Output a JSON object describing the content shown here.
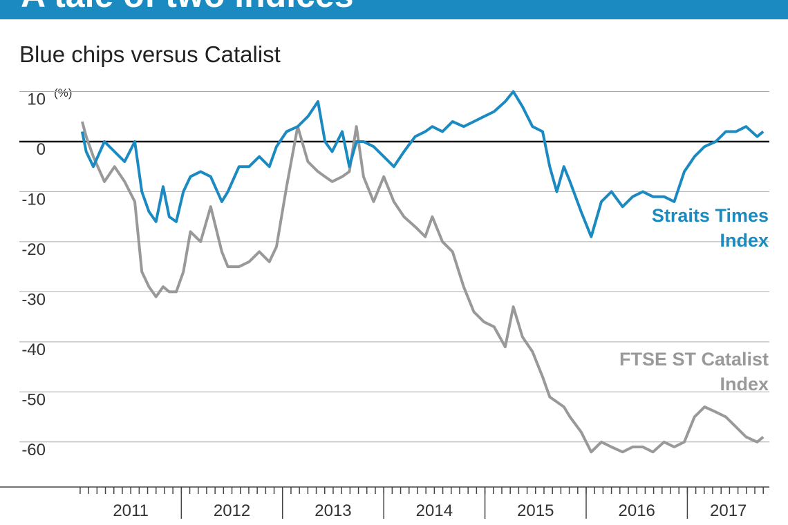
{
  "chart_data": {
    "type": "line",
    "title": "A tale of two indices",
    "subtitle": "Blue chips versus Catalist",
    "y_unit": "(%)",
    "x": [
      2011.02,
      2011.06,
      2011.13,
      2011.24,
      2011.34,
      2011.44,
      2011.54,
      2011.61,
      2011.68,
      2011.75,
      2011.82,
      2011.88,
      2011.95,
      2012.02,
      2012.09,
      2012.19,
      2012.29,
      2012.4,
      2012.46,
      2012.57,
      2012.67,
      2012.77,
      2012.87,
      2012.94,
      2013.04,
      2013.15,
      2013.25,
      2013.35,
      2013.42,
      2013.49,
      2013.59,
      2013.66,
      2013.73,
      2013.8,
      2013.9,
      2014,
      2014.1,
      2014.2,
      2014.31,
      2014.41,
      2014.48,
      2014.58,
      2014.68,
      2014.79,
      2014.89,
      2014.99,
      2015.09,
      2015.2,
      2015.28,
      2015.37,
      2015.47,
      2015.57,
      2015.64,
      2015.71,
      2015.78,
      2015.84,
      2015.95,
      2016.05,
      2016.15,
      2016.25,
      2016.36,
      2016.46,
      2016.56,
      2016.66,
      2016.77,
      2016.87,
      2016.97,
      2017.07,
      2017.17,
      2017.28,
      2017.38,
      2017.48,
      2017.58,
      2017.69,
      2017.75
    ],
    "series": [
      {
        "name": "Straits Times Index",
        "color": "#1a8ac0",
        "values": [
          2,
          -2,
          -5,
          0,
          -2,
          -4,
          0,
          -10,
          -14,
          -16,
          -9,
          -15,
          -16,
          -10,
          -7,
          -6,
          -7,
          -12,
          -10,
          -5,
          -5,
          -3,
          -5,
          -1,
          2,
          3,
          5,
          8,
          0,
          -2,
          2,
          -5,
          0,
          0,
          -1,
          -3,
          -5,
          -2,
          1,
          2,
          3,
          2,
          4,
          3,
          4,
          5,
          6,
          8,
          10,
          7,
          3,
          2,
          -5,
          -10,
          -5,
          -8,
          -14,
          -19,
          -12,
          -10,
          -13,
          -11,
          -10,
          -11,
          -11,
          -12,
          -6,
          -3,
          -1,
          0,
          2,
          2,
          3,
          1,
          2
        ]
      },
      {
        "name": "FTSE ST Catalist Index",
        "color": "#999999",
        "values": [
          4,
          1,
          -3,
          -8,
          -5,
          -8,
          -12,
          -26,
          -29,
          -31,
          -29,
          -30,
          -30,
          -26,
          -18,
          -20,
          -13,
          -22,
          -25,
          -25,
          -24,
          -22,
          -24,
          -21,
          -9,
          3,
          -4,
          -6,
          -7,
          -8,
          -7,
          -6,
          3,
          -7,
          -12,
          -7,
          -12,
          -15,
          -17,
          -19,
          -15,
          -20,
          -22,
          -29,
          -34,
          -36,
          -37,
          -41,
          -33,
          -39,
          -42,
          -47,
          -51,
          -52,
          -53,
          -55,
          -58,
          -62,
          -60,
          -61,
          -62,
          -61,
          -61,
          -62,
          -60,
          -61,
          -60,
          -55,
          -53,
          -54,
          -55,
          -57,
          -59,
          -60,
          -59
        ]
      }
    ],
    "xlim": [
      2010.98,
      2017.81
    ],
    "xticks": [
      2011,
      2012,
      2013,
      2014,
      2015,
      2016,
      2017
    ],
    "ylim": [
      -69,
      12
    ],
    "yticks": [
      10,
      0,
      -10,
      -20,
      -30,
      -40,
      -50,
      -60
    ],
    "grid": true
  }
}
